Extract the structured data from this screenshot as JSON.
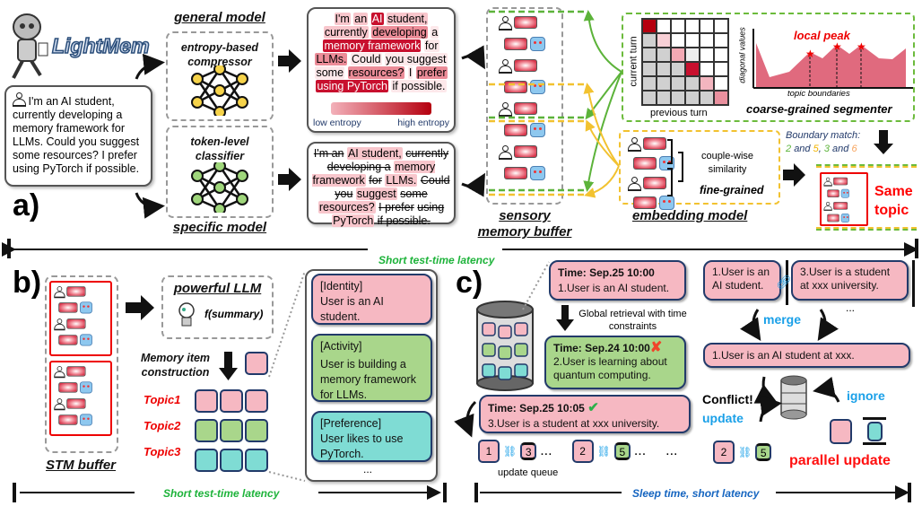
{
  "logo": {
    "text": "LightMem"
  },
  "panel_a": {
    "label": "a)",
    "input_text": "I'm an AI student, currently developing a memory framework for LLMs. Could you suggest some resources? I prefer using PyTorch if possible.",
    "general_model": "general model",
    "compressor": "entropy-based compressor",
    "classifier": "token-level classifier",
    "specific_model": "specific model",
    "entropy_tokens": [
      {
        "t": "I'm",
        "l": 1
      },
      {
        "t": "an",
        "l": 1
      },
      {
        "t": "AI",
        "l": 3
      },
      {
        "t": "student,",
        "l": 1
      },
      {
        "t": "currently",
        "l": 1
      },
      {
        "t": "developing",
        "l": 2
      },
      {
        "t": "a",
        "l": 0
      },
      {
        "t": "memory framework",
        "l": 3
      },
      {
        "t": "for",
        "l": 0
      },
      {
        "t": "LLMs.",
        "l": 2
      },
      {
        "t": "Could",
        "l": 0
      },
      {
        "t": "you suggest",
        "l": 0
      },
      {
        "t": "some",
        "l": 0
      },
      {
        "t": "resources?",
        "l": 2
      },
      {
        "t": "I",
        "l": 0
      },
      {
        "t": "prefer",
        "l": 2
      },
      {
        "t": "using PyTorch",
        "l": 3
      },
      {
        "t": "if possible.",
        "l": 0
      }
    ],
    "legend_low": "low entropy",
    "legend_high": "high entropy",
    "classifier_tokens": [
      {
        "t": "I'm an",
        "k": false
      },
      {
        "t": "AI student,",
        "k": true
      },
      {
        "t": "currently developing a",
        "k": false
      },
      {
        "t": "memory framework",
        "k": true
      },
      {
        "t": "for",
        "k": false
      },
      {
        "t": "LLMs.",
        "k": true
      },
      {
        "t": "Could you",
        "k": false
      },
      {
        "t": "suggest",
        "k": true
      },
      {
        "t": "some",
        "k": false
      },
      {
        "t": "resources?",
        "k": true
      },
      {
        "t": "I prefer",
        "k": false
      },
      {
        "t": "using",
        "k": false
      },
      {
        "t": "PyTorch",
        "k": true
      },
      {
        "t": "if possible.",
        "k": false
      }
    ],
    "sensory_buffer": "sensory memory buffer",
    "green_numbers": [
      "1",
      "2",
      "3"
    ],
    "yellow_numbers": [
      "4",
      "5",
      "6"
    ],
    "current_turn": "current turn",
    "previous_turn": "previous turn",
    "diagonal_values": "diagonal values",
    "local_peak": "local peak",
    "topic_boundaries": "topic boundaries",
    "segmenter": "coarse-grained segmenter",
    "matrix_diag_colors": [
      "#b5000f",
      "#f8d0d6",
      "#f3a9b4",
      "#c8102e",
      "#f3b5bf",
      "#e9909e"
    ],
    "couple_wise": "couple-wise similarity",
    "fine_grained": "fine-grained",
    "embedding_model": "embedding model",
    "boundary_match": "Boundary match:",
    "bm_parts": [
      "2",
      "and",
      "5",
      ",",
      "3",
      "and",
      "6"
    ],
    "same_topic": "Same topic",
    "latency": "Short test-time latency"
  },
  "panel_b": {
    "label": "b)",
    "stm_buffer": "STM buffer",
    "powerful_llm": "powerful LLM",
    "f_summary": "f(summary)",
    "memory_item": "Memory item construction",
    "topics": [
      "Topic1",
      "Topic2",
      "Topic3"
    ],
    "cards": [
      {
        "tag": "[Identity]",
        "text": "User is  an AI student."
      },
      {
        "tag": "[Activity]",
        "text": "User is  building a memory framework for LLMs."
      },
      {
        "tag": "[Preference]",
        "text": "User likes to use PyTorch."
      }
    ],
    "ellipsis": "...",
    "latency": "Short test-time latency"
  },
  "panel_c": {
    "label": "c)",
    "entry1": {
      "time": "Time:  Sep.25 10:00",
      "text": "1.User is  an AI student."
    },
    "retrieval": "Global retrieval with time constraints",
    "entry2": {
      "time": "Time:  Sep.24 10:00",
      "text": "2.User is learning about quantum computing."
    },
    "entry3": {
      "time": "Time:  Sep.25 10:05",
      "text": "3.User is a student at xxx university."
    },
    "queue": [
      {
        "a": "1",
        "b": "3"
      },
      {
        "a": "2",
        "b": "5"
      }
    ],
    "queue_more": "...",
    "update_queue": "update queue",
    "merge_left": "1.User is  an AI student.",
    "merge_right": "3.User is a student at xxx university.",
    "merge": "merge",
    "merged": "1.User is  an AI student at xxx.",
    "conflict": "Conflict!",
    "update": "update",
    "ignore": "ignore",
    "conflict_pair": {
      "a": "2",
      "b": "5"
    },
    "parallel_update": "parallel update",
    "latency": "Sleep time, short latency",
    "colors": {
      "merge": "#1aa0e8",
      "update": "#1aa0e8",
      "ignore": "#1aa0e8",
      "parallel": "#ff1010"
    }
  }
}
